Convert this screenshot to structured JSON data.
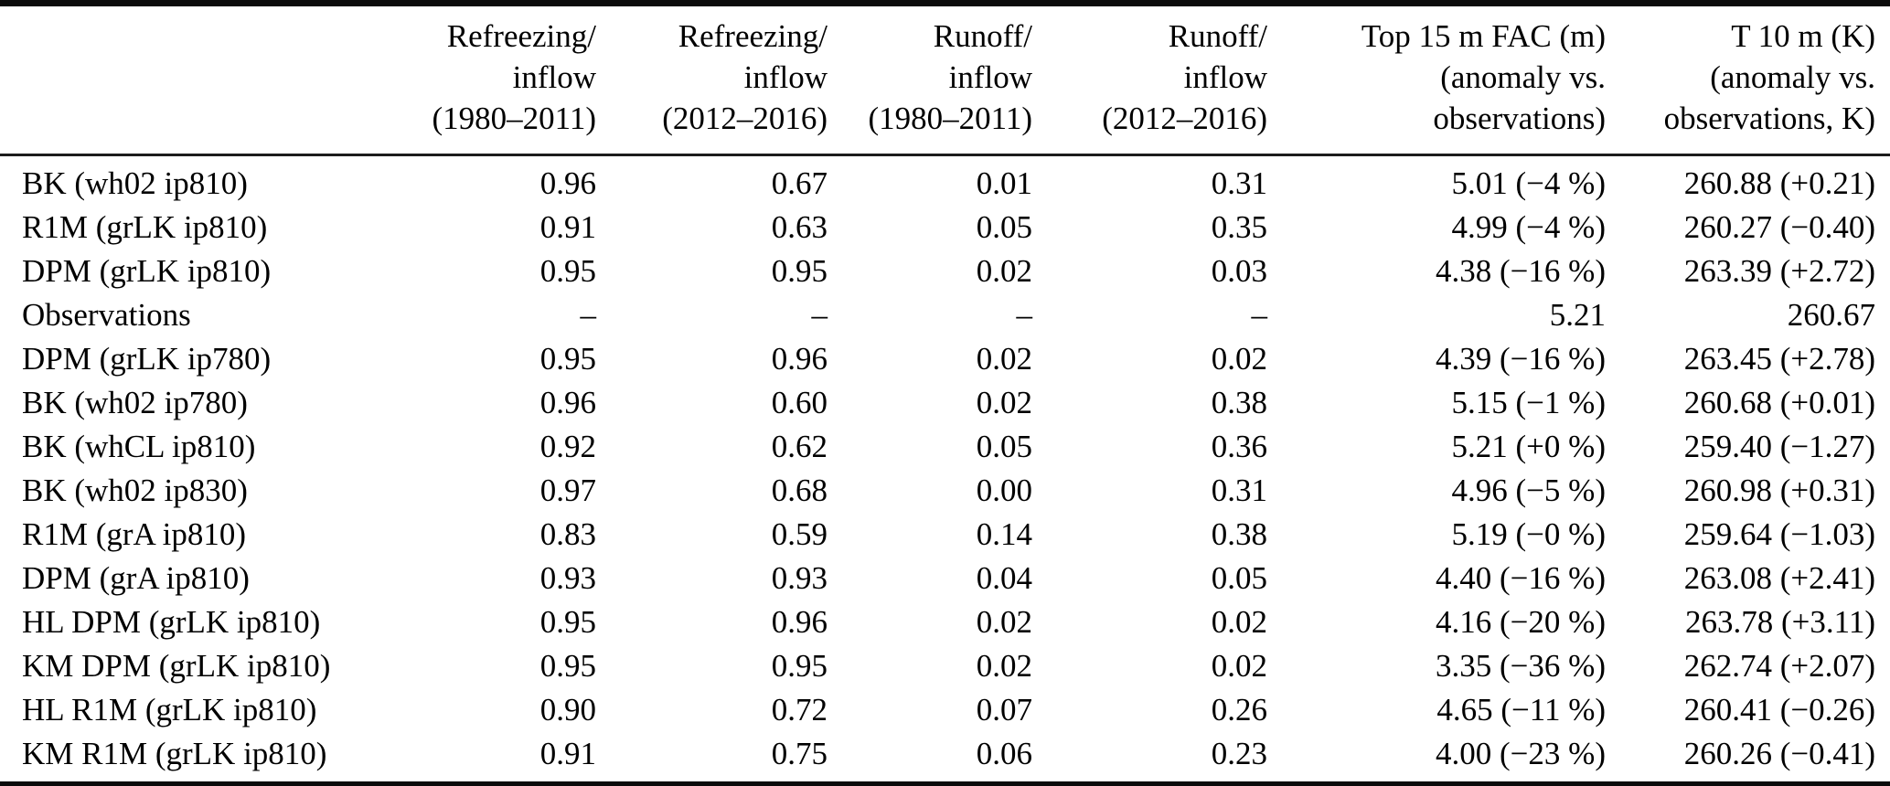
{
  "table": {
    "columns": [
      {
        "id": "model",
        "lines": [
          "",
          "",
          ""
        ]
      },
      {
        "id": "refreezing-inflow-1980-2011",
        "lines": [
          "Refreezing/",
          "inflow",
          "(1980–2011)"
        ]
      },
      {
        "id": "refreezing-inflow-2012-2016",
        "lines": [
          "Refreezing/",
          "inflow",
          "(2012–2016)"
        ]
      },
      {
        "id": "runoff-inflow-1980-2011",
        "lines": [
          "Runoff/",
          "inflow",
          "(1980–2011)"
        ]
      },
      {
        "id": "runoff-inflow-2012-2016",
        "lines": [
          "Runoff/",
          "inflow",
          "(2012–2016)"
        ]
      },
      {
        "id": "top-15m-fac",
        "lines": [
          "Top 15 m FAC (m)",
          "(anomaly vs.",
          "observations)"
        ]
      },
      {
        "id": "t-10m",
        "lines": [
          "T 10 m (K)",
          "(anomaly vs.",
          "observations, K)"
        ]
      }
    ],
    "rows": [
      {
        "label": "BK (wh02 ip810)",
        "cells": [
          "0.96",
          "0.67",
          "0.01",
          "0.31",
          "5.01 (−4 %)",
          "260.88 (+0.21)"
        ]
      },
      {
        "label": "R1M (grLK ip810)",
        "cells": [
          "0.91",
          "0.63",
          "0.05",
          "0.35",
          "4.99 (−4 %)",
          "260.27 (−0.40)"
        ]
      },
      {
        "label": "DPM (grLK ip810)",
        "cells": [
          "0.95",
          "0.95",
          "0.02",
          "0.03",
          "4.38 (−16 %)",
          "263.39 (+2.72)"
        ]
      },
      {
        "label": "Observations",
        "cells": [
          "–",
          "–",
          "–",
          "–",
          "5.21",
          "260.67"
        ]
      },
      {
        "label": "DPM (grLK ip780)",
        "cells": [
          "0.95",
          "0.96",
          "0.02",
          "0.02",
          "4.39 (−16 %)",
          "263.45 (+2.78)"
        ]
      },
      {
        "label": "BK (wh02 ip780)",
        "cells": [
          "0.96",
          "0.60",
          "0.02",
          "0.38",
          "5.15 (−1 %)",
          "260.68 (+0.01)"
        ]
      },
      {
        "label": "BK (whCL ip810)",
        "cells": [
          "0.92",
          "0.62",
          "0.05",
          "0.36",
          "5.21 (+0 %)",
          "259.40 (−1.27)"
        ]
      },
      {
        "label": "BK (wh02 ip830)",
        "cells": [
          "0.97",
          "0.68",
          "0.00",
          "0.31",
          "4.96 (−5 %)",
          "260.98 (+0.31)"
        ]
      },
      {
        "label": "R1M (grA ip810)",
        "cells": [
          "0.83",
          "0.59",
          "0.14",
          "0.38",
          "5.19 (−0 %)",
          "259.64 (−1.03)"
        ]
      },
      {
        "label": "DPM (grA ip810)",
        "cells": [
          "0.93",
          "0.93",
          "0.04",
          "0.05",
          "4.40 (−16 %)",
          "263.08 (+2.41)"
        ]
      },
      {
        "label": "HL DPM (grLK ip810)",
        "cells": [
          "0.95",
          "0.96",
          "0.02",
          "0.02",
          "4.16 (−20 %)",
          "263.78 (+3.11)"
        ]
      },
      {
        "label": "KM DPM (grLK ip810)",
        "cells": [
          "0.95",
          "0.95",
          "0.02",
          "0.02",
          "3.35 (−36 %)",
          "262.74 (+2.07)"
        ]
      },
      {
        "label": "HL R1M (grLK ip810)",
        "cells": [
          "0.90",
          "0.72",
          "0.07",
          "0.26",
          "4.65 (−11 %)",
          "260.41 (−0.26)"
        ]
      },
      {
        "label": "KM R1M (grLK ip810)",
        "cells": [
          "0.91",
          "0.75",
          "0.06",
          "0.23",
          "4.00 (−23 %)",
          "260.26 (−0.41)"
        ]
      }
    ]
  }
}
